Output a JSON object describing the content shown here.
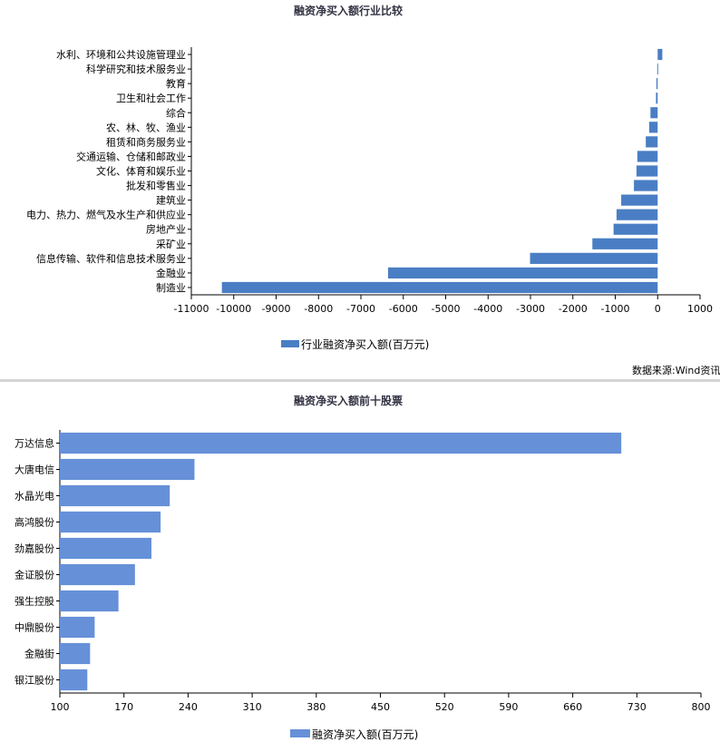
{
  "chart_data": [
    {
      "type": "bar",
      "orientation": "horizontal",
      "title": "融资净买入额行业比较",
      "categories": [
        "水利、环境和公共设施管理业",
        "科学研究和技术服务业",
        "教育",
        "卫生和社会工作",
        "综合",
        "农、林、牧、渔业",
        "租赁和商务服务业",
        "交通运输、仓储和邮政业",
        "文化、体育和娱乐业",
        "批发和零售业",
        "建筑业",
        "电力、热力、燃气及水生产和供应业",
        "房地产业",
        "采矿业",
        "信息传输、软件和信息技术服务业",
        "金融业",
        "制造业"
      ],
      "series": [
        {
          "name": "行业融资净买入额(百万元)",
          "values": [
            110,
            -10,
            -30,
            -40,
            -170,
            -200,
            -280,
            -480,
            -500,
            -560,
            -860,
            -970,
            -1040,
            -1540,
            -3010,
            -6360,
            -10280
          ]
        }
      ],
      "xlim": [
        -11000,
        1000
      ],
      "xticks": [
        "-11000",
        "-10000",
        "-9000",
        "-8000",
        "-7000",
        "-6000",
        "-5000",
        "-4000",
        "-3000",
        "-2000",
        "-1000",
        "0",
        "1000"
      ],
      "legend": "bottom",
      "color": "#4a7ec4"
    },
    {
      "type": "bar",
      "orientation": "horizontal",
      "title": "融资净买入额前十股票",
      "categories": [
        "万达信息",
        "大唐电信",
        "水晶光电",
        "高鸿股份",
        "劲嘉股份",
        "金证股份",
        "强生控股",
        "中鼎股份",
        "金融街",
        "银江股份"
      ],
      "series": [
        {
          "name": "融资净买入额(百万元)",
          "values": [
            713,
            247,
            220,
            210,
            200,
            182,
            164,
            138,
            133,
            130
          ]
        }
      ],
      "xlim": [
        100,
        800
      ],
      "xticks": [
        "100",
        "170",
        "240",
        "310",
        "380",
        "450",
        "520",
        "590",
        "660",
        "730",
        "800"
      ],
      "legend": "bottom",
      "color": "#6690d8"
    }
  ],
  "source": "数据来源:Wind资讯"
}
